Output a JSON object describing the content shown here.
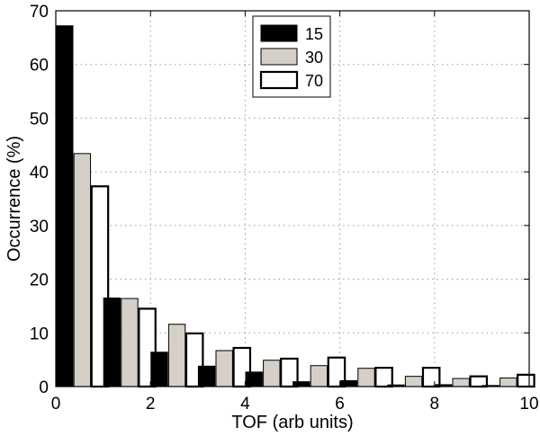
{
  "chart_data": {
    "type": "bar",
    "title": "",
    "xlabel": "TOF (arb units)",
    "ylabel": "Occurrence (%)",
    "xlim": [
      0,
      10
    ],
    "ylim": [
      0,
      70
    ],
    "xticks": [
      "0",
      "2",
      "4",
      "6",
      "8",
      "10"
    ],
    "yticks": [
      "0",
      "10",
      "20",
      "30",
      "40",
      "50",
      "60",
      "70"
    ],
    "grid": true,
    "legend_position": "top-center",
    "bin_width": 1,
    "x": [
      0,
      1,
      2,
      3,
      4,
      5,
      6,
      7,
      8,
      9
    ],
    "series": [
      {
        "name": "15",
        "color": "#000000",
        "edge": "#000000",
        "values": [
          67.2,
          16.5,
          6.4,
          3.8,
          2.7,
          0.9,
          1.1,
          0.3,
          0.35,
          0.2
        ]
      },
      {
        "name": "30",
        "color": "#d4d0c8",
        "edge": "#000000",
        "values": [
          43.4,
          16.4,
          11.6,
          6.7,
          4.9,
          3.9,
          3.4,
          1.9,
          1.5,
          1.6
        ]
      },
      {
        "name": "70",
        "color": "#ffffff",
        "edge": "#000000",
        "values": [
          37.3,
          14.5,
          9.9,
          7.2,
          5.2,
          5.4,
          3.5,
          3.5,
          1.9,
          2.2
        ]
      }
    ]
  }
}
